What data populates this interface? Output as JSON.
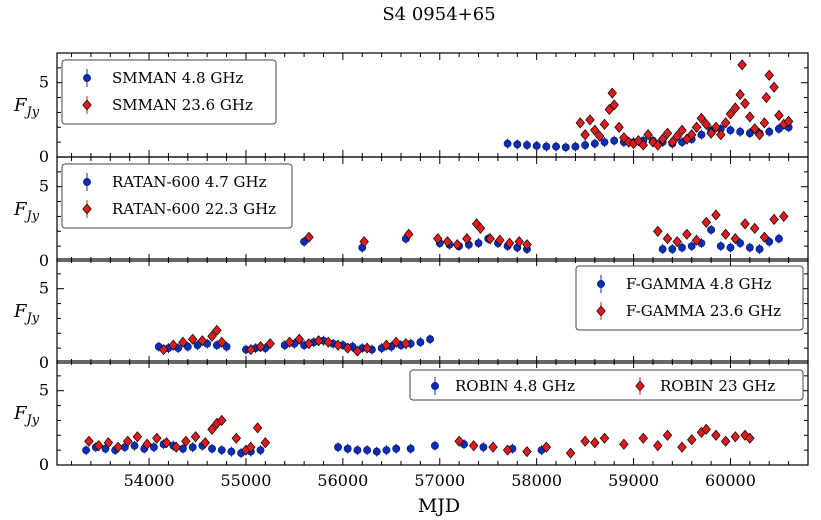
{
  "figure": {
    "title": "S4 0954+65",
    "xlabel": "MJD",
    "ylabel_main": "F",
    "ylabel_sub": "Jy"
  },
  "chart_data": [
    {
      "type": "scatter",
      "id": "smman",
      "ylabel": "F_Jy",
      "xlim": [
        53050,
        60800
      ],
      "ylim": [
        0,
        7
      ],
      "yticks": [
        0,
        5
      ],
      "legend_position": "top-left",
      "series": [
        {
          "name": "SMMAN 4.8 GHz",
          "color": "#0a2db8",
          "marker": "circle",
          "x": [
            57700,
            57800,
            57900,
            58000,
            58100,
            58200,
            58300,
            58400,
            58500,
            58600,
            58700,
            58800,
            58900,
            59000,
            59100,
            59200,
            59300,
            59400,
            59500,
            59600,
            59700,
            59800,
            59900,
            60000,
            60100,
            60200,
            60300,
            60400,
            60500,
            60600
          ],
          "y": [
            0.9,
            0.85,
            0.8,
            0.75,
            0.7,
            0.7,
            0.65,
            0.7,
            0.8,
            0.9,
            1.0,
            1.1,
            1.0,
            1.0,
            1.1,
            1.1,
            1.0,
            0.9,
            1.0,
            1.2,
            1.5,
            1.8,
            1.9,
            1.8,
            1.7,
            1.6,
            1.6,
            1.7,
            1.9,
            2.0
          ]
        },
        {
          "name": "SMMAN 23.6 GHz",
          "color": "#e31a1c",
          "marker": "diamond",
          "x": [
            58450,
            58500,
            58550,
            58600,
            58650,
            58700,
            58750,
            58780,
            58800,
            58850,
            58900,
            58950,
            59000,
            59050,
            59100,
            59150,
            59200,
            59250,
            59300,
            59350,
            59400,
            59450,
            59500,
            59550,
            59600,
            59650,
            59700,
            59750,
            59800,
            59850,
            59900,
            59950,
            60000,
            60050,
            60100,
            60120,
            60150,
            60200,
            60250,
            60300,
            60350,
            60370,
            60400,
            60450,
            60500,
            60550,
            60600
          ],
          "y": [
            2.3,
            1.5,
            2.5,
            1.8,
            1.4,
            2.2,
            3.2,
            4.3,
            3.5,
            2.0,
            1.3,
            1.0,
            0.9,
            1.1,
            0.8,
            1.5,
            1.0,
            0.8,
            1.2,
            1.6,
            1.0,
            1.4,
            1.8,
            1.2,
            1.5,
            2.0,
            2.6,
            2.2,
            1.6,
            2.0,
            1.5,
            2.3,
            2.9,
            3.3,
            4.2,
            6.2,
            3.6,
            2.7,
            1.9,
            1.5,
            2.3,
            4.0,
            5.5,
            4.7,
            2.8,
            2.2,
            2.4
          ]
        }
      ]
    },
    {
      "type": "scatter",
      "id": "ratan",
      "ylabel": "F_Jy",
      "xlim": [
        53050,
        60800
      ],
      "ylim": [
        0,
        7
      ],
      "yticks": [
        0,
        5
      ],
      "legend_position": "top-left",
      "series": [
        {
          "name": "RATAN-600 4.7 GHz",
          "color": "#0a2db8",
          "marker": "circle",
          "x": [
            55600,
            56200,
            56650,
            57000,
            57100,
            57200,
            57300,
            57400,
            57500,
            57600,
            57700,
            57800,
            57900,
            59300,
            59400,
            59500,
            59600,
            59700,
            59800,
            59900,
            60000,
            60100,
            60200,
            60300,
            60400,
            60500
          ],
          "y": [
            1.3,
            0.9,
            1.5,
            1.2,
            1.1,
            1.0,
            1.1,
            1.2,
            1.5,
            1.2,
            1.0,
            0.9,
            0.8,
            0.8,
            0.8,
            0.9,
            1.0,
            1.2,
            2.1,
            1.0,
            0.9,
            1.2,
            0.9,
            0.8,
            1.3,
            1.5
          ]
        },
        {
          "name": "RATAN-600 22.3 GHz",
          "color": "#e31a1c",
          "marker": "diamond",
          "x": [
            55650,
            56220,
            56680,
            56980,
            57080,
            57180,
            57280,
            57380,
            57420,
            57520,
            57620,
            57720,
            57820,
            57900,
            59250,
            59350,
            59450,
            59550,
            59650,
            59750,
            59850,
            59950,
            60050,
            60150,
            60250,
            60350,
            60450,
            60550
          ],
          "y": [
            1.6,
            1.3,
            1.8,
            1.5,
            1.3,
            1.1,
            1.5,
            2.5,
            2.2,
            1.5,
            1.4,
            1.2,
            1.3,
            1.1,
            2.0,
            1.5,
            1.3,
            1.8,
            1.4,
            2.6,
            3.1,
            1.8,
            1.5,
            2.5,
            2.2,
            1.6,
            2.8,
            3.0
          ]
        }
      ]
    },
    {
      "type": "scatter",
      "id": "fgamma",
      "ylabel": "F_Jy",
      "xlim": [
        53050,
        60800
      ],
      "ylim": [
        0,
        7
      ],
      "yticks": [
        0,
        5
      ],
      "legend_position": "top-right",
      "series": [
        {
          "name": "F-GAMMA 4.8 GHz",
          "color": "#0a2db8",
          "marker": "circle",
          "x": [
            54100,
            54200,
            54300,
            54400,
            54500,
            54600,
            54700,
            54800,
            55000,
            55100,
            55200,
            55400,
            55500,
            55600,
            55700,
            55800,
            55900,
            56000,
            56100,
            56200,
            56300,
            56400,
            56500,
            56600,
            56700,
            56800,
            56900
          ],
          "y": [
            1.1,
            1.0,
            1.0,
            1.1,
            1.2,
            1.3,
            1.2,
            1.1,
            0.9,
            1.0,
            1.0,
            1.2,
            1.3,
            1.2,
            1.4,
            1.5,
            1.3,
            1.2,
            1.1,
            1.0,
            0.9,
            1.0,
            1.1,
            1.2,
            1.3,
            1.4,
            1.6
          ]
        },
        {
          "name": "F-GAMMA 23.6 GHz",
          "color": "#e31a1c",
          "marker": "diamond",
          "x": [
            54150,
            54250,
            54350,
            54450,
            54550,
            54650,
            54700,
            54750,
            55050,
            55150,
            55250,
            55450,
            55550,
            55650,
            55750,
            55850,
            55950,
            56050,
            56150,
            56250,
            56450,
            56550,
            56650
          ],
          "y": [
            0.9,
            1.2,
            1.4,
            1.6,
            1.5,
            1.8,
            2.2,
            1.4,
            0.9,
            1.1,
            1.3,
            1.4,
            1.6,
            1.3,
            1.5,
            1.4,
            1.2,
            1.0,
            0.8,
            1.0,
            1.2,
            1.4,
            1.3
          ]
        }
      ]
    },
    {
      "type": "scatter",
      "id": "robin",
      "ylabel": "F_Jy",
      "xlim": [
        53050,
        60800
      ],
      "ylim": [
        0,
        7
      ],
      "yticks": [
        0,
        5
      ],
      "legend_position": "top-right",
      "series": [
        {
          "name": "ROBIN 4.8 GHz",
          "color": "#0a2db8",
          "marker": "circle",
          "x": [
            53350,
            53450,
            53550,
            53650,
            53750,
            53850,
            53950,
            54050,
            54150,
            54250,
            54350,
            54450,
            54550,
            54650,
            54750,
            54850,
            54950,
            55050,
            55150,
            55950,
            56050,
            56150,
            56250,
            56350,
            56450,
            56550,
            56700,
            56950,
            57250,
            57450,
            57750,
            58050
          ],
          "y": [
            1.0,
            1.2,
            1.1,
            1.0,
            1.2,
            1.3,
            1.1,
            1.2,
            1.4,
            1.3,
            1.1,
            1.2,
            1.3,
            1.1,
            1.0,
            0.9,
            0.8,
            0.9,
            1.0,
            1.2,
            1.1,
            1.0,
            1.0,
            0.9,
            1.0,
            1.1,
            1.1,
            1.3,
            1.4,
            1.2,
            1.1,
            1.0
          ]
        },
        {
          "name": "ROBIN 23 GHz",
          "color": "#e31a1c",
          "marker": "diamond",
          "x": [
            53380,
            53480,
            53580,
            53680,
            53780,
            53880,
            53980,
            54080,
            54180,
            54280,
            54380,
            54480,
            54580,
            54650,
            54700,
            54750,
            54900,
            55000,
            55050,
            55120,
            55200,
            57200,
            57350,
            57550,
            57700,
            57900,
            58100,
            58350,
            58500,
            58600,
            58700,
            58900,
            59100,
            59250,
            59350,
            59500,
            59600,
            59700,
            59750,
            59850,
            59950,
            60050,
            60150,
            60200
          ],
          "y": [
            1.6,
            1.3,
            1.5,
            1.2,
            1.6,
            1.9,
            1.4,
            1.8,
            1.5,
            1.2,
            1.6,
            1.9,
            1.5,
            2.4,
            2.8,
            3.0,
            1.8,
            1.0,
            1.2,
            2.5,
            1.5,
            1.6,
            1.3,
            1.2,
            1.0,
            0.9,
            1.2,
            0.8,
            1.6,
            1.5,
            1.8,
            1.4,
            1.8,
            1.3,
            2.0,
            1.2,
            1.7,
            2.2,
            2.4,
            2.0,
            1.6,
            1.9,
            2.0,
            1.8
          ]
        }
      ]
    }
  ]
}
